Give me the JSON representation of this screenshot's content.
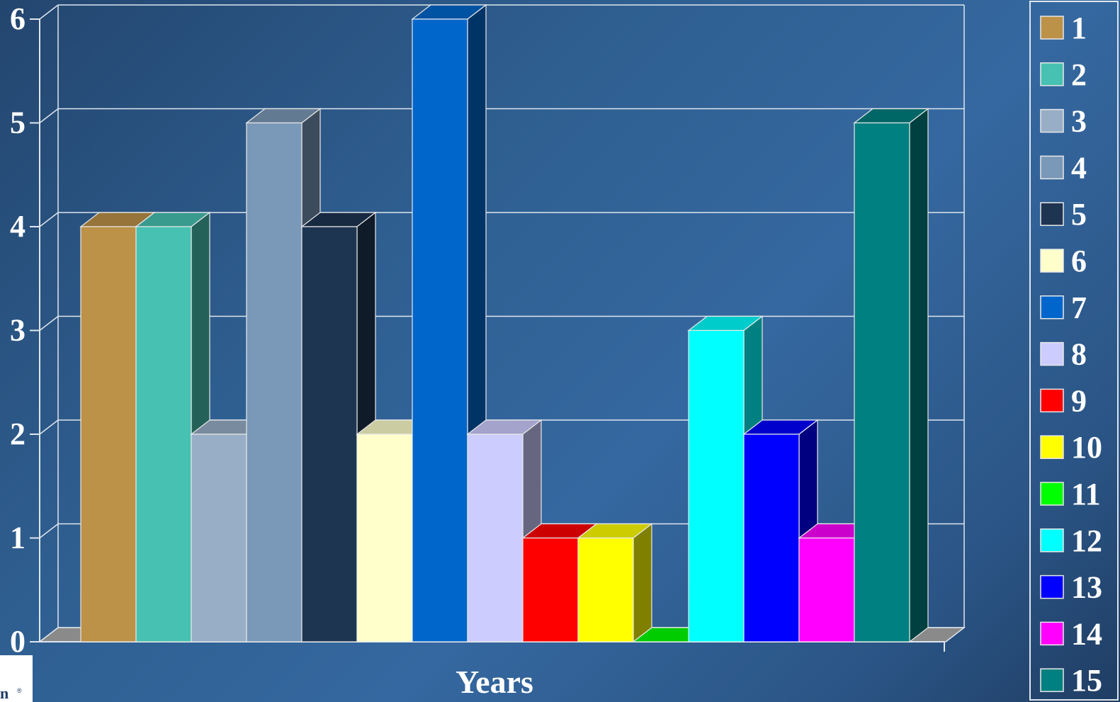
{
  "chart_data": {
    "type": "bar",
    "style": "3d",
    "xlabel": "Years",
    "ylabel": "",
    "ylim": [
      0,
      6
    ],
    "yticks": [
      "0",
      "1",
      "2",
      "3",
      "4",
      "5",
      "6"
    ],
    "grid": true,
    "legend_position": "right",
    "series": [
      {
        "name": "1",
        "value": 4,
        "color": "#bc9148"
      },
      {
        "name": "2",
        "value": 4,
        "color": "#47c1b1"
      },
      {
        "name": "3",
        "value": 2,
        "color": "#97aec6"
      },
      {
        "name": "4",
        "value": 5,
        "color": "#7a98b7"
      },
      {
        "name": "5",
        "value": 4,
        "color": "#1e3552"
      },
      {
        "name": "6",
        "value": 2,
        "color": "#ffffcc"
      },
      {
        "name": "7",
        "value": 6,
        "color": "#0066cc"
      },
      {
        "name": "8",
        "value": 2,
        "color": "#ccccff"
      },
      {
        "name": "9",
        "value": 1,
        "color": "#ff0000"
      },
      {
        "name": "10",
        "value": 1,
        "color": "#ffff00"
      },
      {
        "name": "11",
        "value": 0,
        "color": "#00ff00"
      },
      {
        "name": "12",
        "value": 3,
        "color": "#00ffff"
      },
      {
        "name": "13",
        "value": 2,
        "color": "#0000ff"
      },
      {
        "name": "14",
        "value": 1,
        "color": "#ff00ff"
      },
      {
        "name": "15",
        "value": 5,
        "color": "#008080"
      }
    ]
  },
  "colors": {
    "grid": "#dfe6ee",
    "floor": "#8a8a8a",
    "legend_border": "#dfe6ee"
  },
  "logo_icon": "corner-logo-icon"
}
